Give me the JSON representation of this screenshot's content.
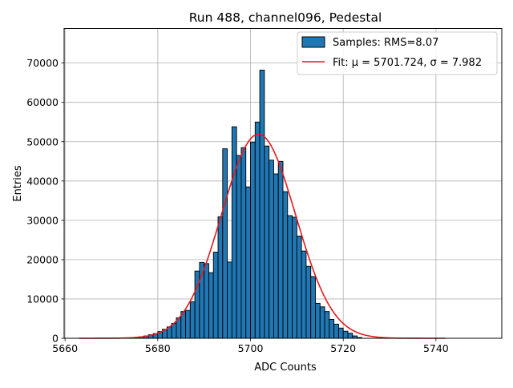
{
  "chart_data": {
    "type": "bar",
    "title": "Run 488, channel096, Pedestal",
    "xlabel": "ADC Counts",
    "ylabel": "Entries",
    "xlim": [
      5659.8,
      5754.2
    ],
    "ylim": [
      0,
      78800
    ],
    "x_ticks": [
      5660,
      5680,
      5700,
      5720,
      5740
    ],
    "y_ticks": [
      0,
      10000,
      20000,
      30000,
      40000,
      50000,
      60000,
      70000
    ],
    "grid": true,
    "legend_position": "top-right",
    "colors": {
      "bars": "#1f77b4",
      "bar_edge": "#000000",
      "fit": "#e41a1c",
      "grid": "#b0b0b0"
    },
    "series": [
      {
        "name": "Samples: RMS=8.07",
        "kind": "histogram",
        "bin_width": 1,
        "bins": [
          [
            5675,
            200
          ],
          [
            5676,
            400
          ],
          [
            5677,
            600
          ],
          [
            5678,
            900
          ],
          [
            5679,
            1200
          ],
          [
            5680,
            1700
          ],
          [
            5681,
            2300
          ],
          [
            5682,
            2900
          ],
          [
            5683,
            3800
          ],
          [
            5684,
            5200
          ],
          [
            5685,
            6800
          ],
          [
            5686,
            7100
          ],
          [
            5687,
            9300
          ],
          [
            5688,
            17100
          ],
          [
            5689,
            19300
          ],
          [
            5690,
            19000
          ],
          [
            5691,
            16700
          ],
          [
            5692,
            21900
          ],
          [
            5693,
            30900
          ],
          [
            5694,
            48200
          ],
          [
            5695,
            19400
          ],
          [
            5696,
            53800
          ],
          [
            5697,
            46500
          ],
          [
            5698,
            48500
          ],
          [
            5699,
            38500
          ],
          [
            5700,
            49900
          ],
          [
            5701,
            55000
          ],
          [
            5702,
            68200
          ],
          [
            5703,
            48900
          ],
          [
            5704,
            45300
          ],
          [
            5705,
            41800
          ],
          [
            5706,
            45000
          ],
          [
            5707,
            37300
          ],
          [
            5708,
            31200
          ],
          [
            5709,
            30800
          ],
          [
            5710,
            26000
          ],
          [
            5711,
            22200
          ],
          [
            5712,
            18300
          ],
          [
            5713,
            15700
          ],
          [
            5714,
            8900
          ],
          [
            5715,
            8000
          ],
          [
            5716,
            6800
          ],
          [
            5717,
            4800
          ],
          [
            5718,
            3600
          ],
          [
            5719,
            2600
          ],
          [
            5720,
            1800
          ],
          [
            5721,
            1300
          ],
          [
            5722,
            600
          ],
          [
            5723,
            200
          ]
        ]
      },
      {
        "name": "Fit: μ = 5701.724, σ = 7.982",
        "kind": "gaussian",
        "x_range": [
          5663,
          5742
        ],
        "amplitude": 51900,
        "mu": 5701.724,
        "sigma": 7.982
      }
    ]
  }
}
